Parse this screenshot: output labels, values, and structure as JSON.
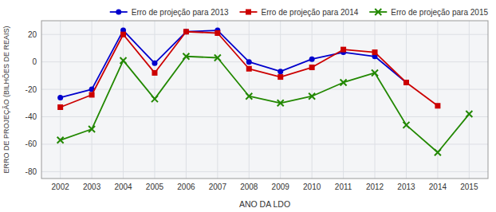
{
  "chart_data": {
    "type": "line",
    "x": [
      2002,
      2003,
      2004,
      2005,
      2006,
      2007,
      2008,
      2009,
      2010,
      2011,
      2012,
      2013,
      2014,
      2015
    ],
    "series": [
      {
        "name": "Erro de projeção para 2013",
        "color": "#0000cc",
        "marker": "circle",
        "values": [
          -26,
          -20,
          23,
          -1,
          22,
          23,
          0,
          -7,
          2,
          7,
          4,
          -15,
          null,
          null
        ]
      },
      {
        "name": "Erro de projeção para 2014",
        "color": "#cc0000",
        "marker": "square",
        "values": [
          -33,
          -24,
          20,
          -8,
          22,
          21,
          -5,
          -11,
          -4,
          9,
          7,
          -15,
          -32,
          null
        ]
      },
      {
        "name": "Erro de projeção para 2015",
        "color": "#228800",
        "marker": "x",
        "values": [
          -57,
          -49,
          1,
          -27,
          4,
          3,
          -25,
          -30,
          -25,
          -15,
          -8,
          -46,
          -66,
          -38
        ]
      }
    ],
    "xlabel": "ANO DA LDO",
    "ylabel": "ERRO DE PROJEÇÃO (BILHÕES DE REAIS)",
    "xlim": [
      2001.4,
      2015.6
    ],
    "xticks": [
      2002,
      2003,
      2004,
      2005,
      2006,
      2007,
      2008,
      2009,
      2010,
      2011,
      2012,
      2013,
      2014,
      2015
    ],
    "ylim": [
      -85,
      30
    ],
    "yticks": [
      -80,
      -60,
      -40,
      -20,
      0,
      20
    ],
    "grid": true,
    "legend": "upper-right"
  }
}
